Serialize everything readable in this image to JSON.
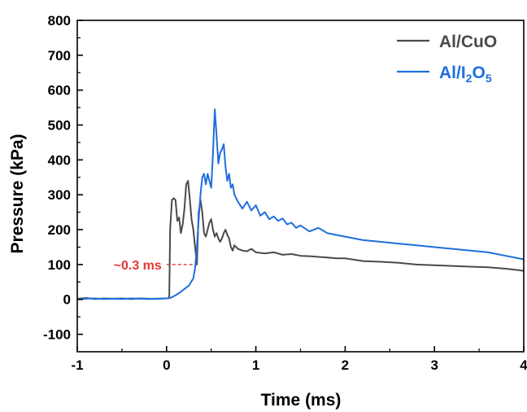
{
  "chart_data": {
    "type": "line",
    "title": "",
    "xlabel": "Time (ms)",
    "ylabel": "Pressure (kPa)",
    "xlim": [
      -1,
      4
    ],
    "ylim": [
      -150,
      800
    ],
    "x_ticks": [
      -1,
      0,
      1,
      2,
      3,
      4
    ],
    "x_tick_labels": [
      "-1",
      "0",
      "1",
      "2",
      "3",
      "4"
    ],
    "y_ticks": [
      -100,
      0,
      100,
      200,
      300,
      400,
      500,
      600,
      700,
      800
    ],
    "y_tick_labels": [
      "-100",
      "0",
      "100",
      "200",
      "300",
      "400",
      "500",
      "600",
      "700",
      "800"
    ],
    "grid": false,
    "legend_position": "top-right",
    "series": [
      {
        "name": "Al/CuO",
        "legend_label": {
          "main": "Al/CuO",
          "sub1": "",
          "mid": "",
          "sub2": ""
        },
        "color": "#4a4a4a",
        "x": [
          -1.0,
          -0.9,
          -0.8,
          -0.7,
          -0.6,
          -0.5,
          -0.4,
          -0.3,
          -0.2,
          -0.1,
          0.0,
          0.03,
          0.04,
          0.06,
          0.08,
          0.1,
          0.12,
          0.14,
          0.16,
          0.18,
          0.2,
          0.22,
          0.24,
          0.26,
          0.28,
          0.3,
          0.32,
          0.34,
          0.36,
          0.38,
          0.4,
          0.42,
          0.44,
          0.46,
          0.48,
          0.5,
          0.52,
          0.54,
          0.56,
          0.58,
          0.6,
          0.62,
          0.64,
          0.66,
          0.68,
          0.7,
          0.72,
          0.74,
          0.76,
          0.78,
          0.8,
          0.85,
          0.9,
          0.95,
          1.0,
          1.1,
          1.2,
          1.3,
          1.4,
          1.5,
          1.6,
          1.7,
          1.8,
          1.9,
          2.0,
          2.2,
          2.4,
          2.6,
          2.8,
          3.0,
          3.2,
          3.4,
          3.6,
          3.8,
          4.0
        ],
        "y": [
          2,
          4,
          1,
          3,
          2,
          3,
          1,
          3,
          2,
          2,
          3,
          4,
          200,
          285,
          290,
          285,
          225,
          235,
          190,
          215,
          260,
          330,
          340,
          290,
          230,
          200,
          150,
          100,
          250,
          285,
          250,
          190,
          180,
          200,
          220,
          230,
          200,
          180,
          190,
          175,
          165,
          175,
          190,
          200,
          185,
          175,
          150,
          140,
          155,
          150,
          145,
          140,
          138,
          145,
          135,
          132,
          135,
          128,
          130,
          125,
          124,
          122,
          120,
          118,
          118,
          110,
          108,
          105,
          100,
          98,
          96,
          94,
          92,
          88,
          82
        ]
      },
      {
        "name": "Al/I2O5",
        "legend_label": {
          "main": "Al/I",
          "sub1": "2",
          "mid": "O",
          "sub2": "5"
        },
        "color": "#1f6ede",
        "x": [
          -1.0,
          -0.9,
          -0.8,
          -0.7,
          -0.6,
          -0.5,
          -0.4,
          -0.3,
          -0.2,
          -0.1,
          0.0,
          0.05,
          0.1,
          0.15,
          0.2,
          0.25,
          0.3,
          0.32,
          0.34,
          0.36,
          0.38,
          0.4,
          0.42,
          0.44,
          0.46,
          0.48,
          0.5,
          0.52,
          0.54,
          0.56,
          0.58,
          0.6,
          0.62,
          0.64,
          0.66,
          0.68,
          0.7,
          0.72,
          0.74,
          0.76,
          0.78,
          0.8,
          0.85,
          0.9,
          0.95,
          1.0,
          1.05,
          1.1,
          1.15,
          1.2,
          1.25,
          1.3,
          1.35,
          1.4,
          1.45,
          1.5,
          1.6,
          1.7,
          1.8,
          1.9,
          2.0,
          2.2,
          2.4,
          2.6,
          2.8,
          3.0,
          3.2,
          3.4,
          3.6,
          3.8,
          4.0
        ],
        "y": [
          1,
          2,
          3,
          1,
          2,
          1,
          3,
          2,
          1,
          2,
          3,
          5,
          12,
          20,
          30,
          40,
          60,
          90,
          150,
          230,
          300,
          350,
          360,
          330,
          360,
          340,
          320,
          420,
          545,
          470,
          390,
          420,
          430,
          445,
          380,
          340,
          360,
          320,
          330,
          300,
          290,
          280,
          260,
          280,
          255,
          270,
          240,
          250,
          230,
          238,
          225,
          232,
          215,
          220,
          205,
          212,
          195,
          205,
          190,
          185,
          180,
          170,
          165,
          160,
          155,
          150,
          145,
          140,
          135,
          125,
          115
        ]
      }
    ],
    "annotations": [
      {
        "text": "~0.3 ms",
        "color": "#e53935",
        "x_from": 0.0,
        "x_to": 0.3,
        "y": 100
      }
    ]
  }
}
